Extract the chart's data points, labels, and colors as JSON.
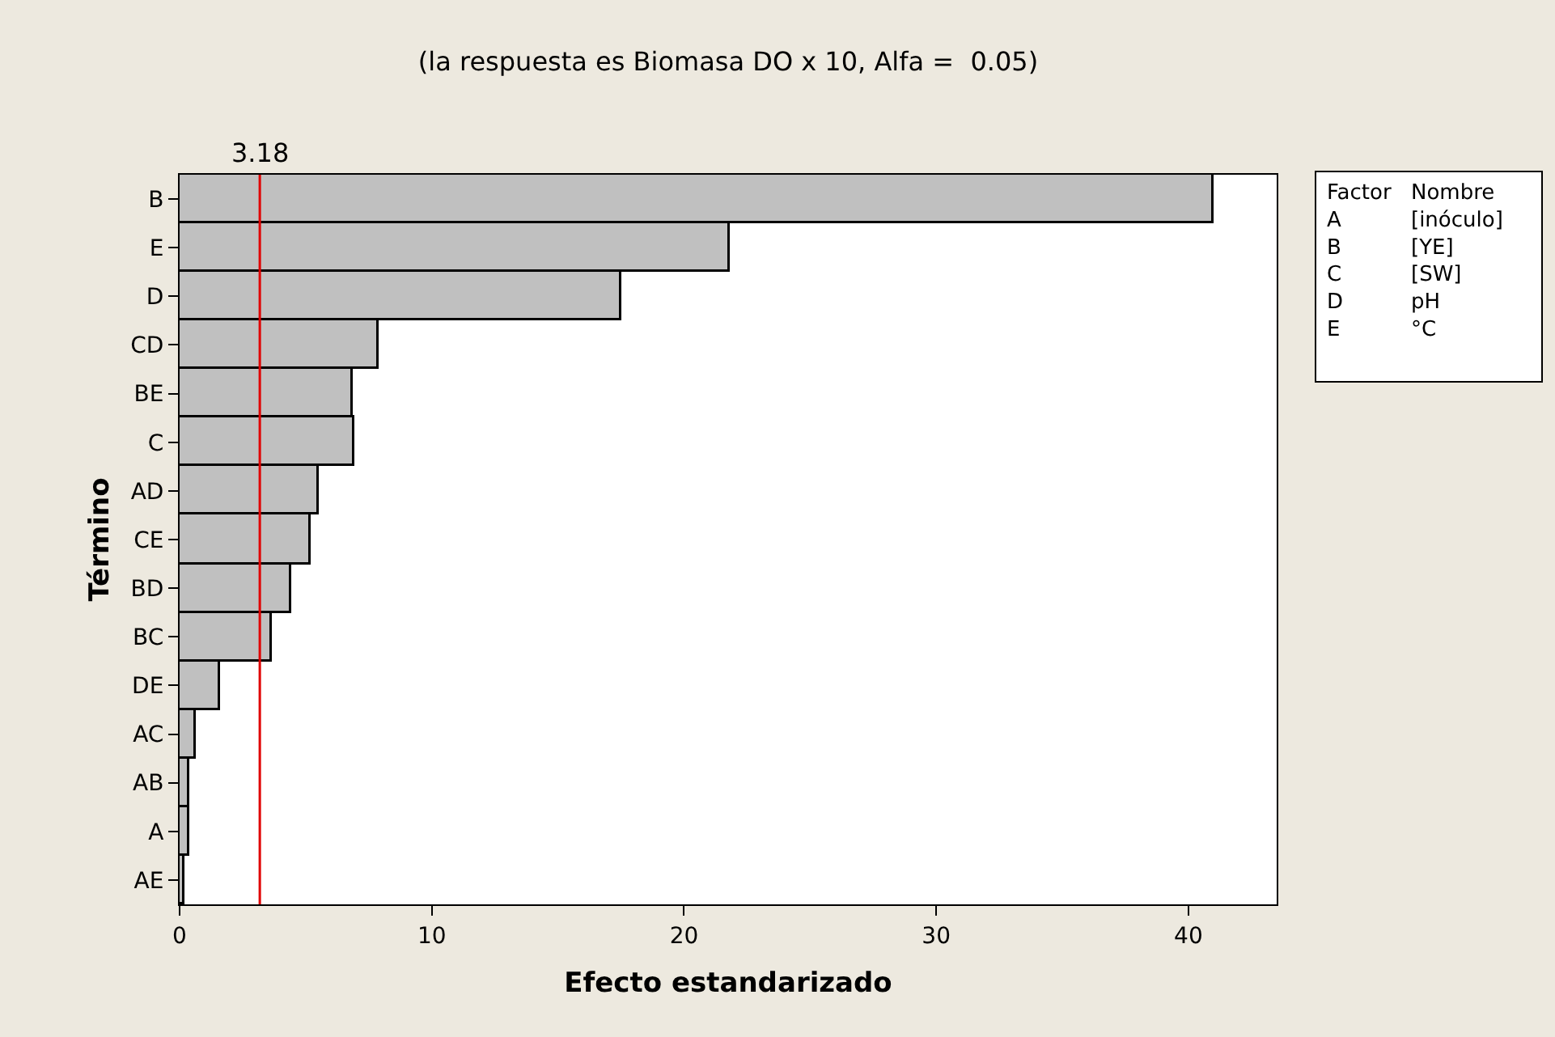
{
  "chart_data": {
    "type": "bar",
    "orientation": "horizontal",
    "title": "(la respuesta es Biomasa DO x 10, Alfa =  0.05)",
    "xlabel": "Efecto estandarizado",
    "ylabel": "Término",
    "categories": [
      "B",
      "E",
      "D",
      "CD",
      "BE",
      "C",
      "AD",
      "CE",
      "BD",
      "BC",
      "DE",
      "AC",
      "AB",
      "A",
      "AE"
    ],
    "values": [
      41.0,
      21.8,
      17.5,
      7.9,
      6.85,
      6.9,
      5.5,
      5.2,
      4.4,
      3.65,
      1.6,
      0.65,
      0.4,
      0.4,
      0.2
    ],
    "color": "#c0c0c0",
    "xlim": [
      0,
      43.5
    ],
    "xticks": [
      0,
      10,
      20,
      30,
      40
    ],
    "ref_lines": [
      {
        "axis": "x",
        "value": 3.18,
        "label": "3.18",
        "color": "#e00000"
      }
    ],
    "annotations": [
      "Factor\nA\nB\nC\nD\nE",
      "Nombre\n[inóculo]\n[YE]\n[SW]\npH\n°C"
    ]
  }
}
